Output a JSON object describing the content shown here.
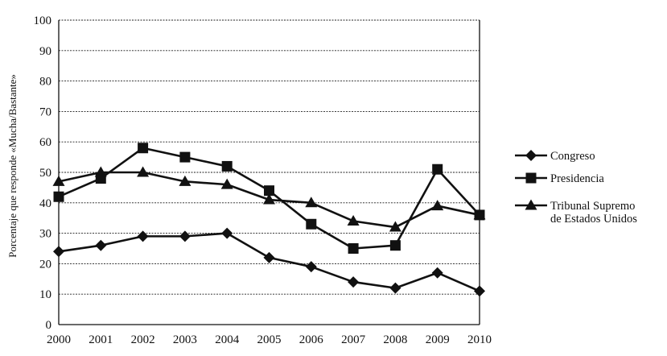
{
  "chart_data": {
    "type": "line",
    "x": [
      "2000",
      "2001",
      "2002",
      "2003",
      "2004",
      "2005",
      "2006",
      "2007",
      "2008",
      "2009",
      "2010"
    ],
    "ylabel": "Porcentaje que responde «Mucha/Bastante»",
    "ylim": [
      0,
      100
    ],
    "yticks": [
      "0",
      "10",
      "20",
      "30",
      "40",
      "50",
      "60",
      "70",
      "80",
      "90",
      "100"
    ],
    "grid": true,
    "legend_position": "right",
    "series": [
      {
        "name": "Congreso",
        "marker": "diamond",
        "values": [
          24,
          26,
          29,
          29,
          30,
          22,
          19,
          14,
          12,
          17,
          11
        ]
      },
      {
        "name": "Presidencia",
        "marker": "square",
        "values": [
          42,
          48,
          58,
          55,
          52,
          44,
          33,
          25,
          26,
          51,
          36
        ]
      },
      {
        "name": "Tribunal Supremo de Estados Unidos",
        "name_lines": [
          "Tribunal Supremo",
          "de Estados Unidos"
        ],
        "marker": "triangle",
        "values": [
          47,
          50,
          50,
          47,
          46,
          41,
          40,
          34,
          32,
          39,
          36
        ]
      }
    ]
  }
}
